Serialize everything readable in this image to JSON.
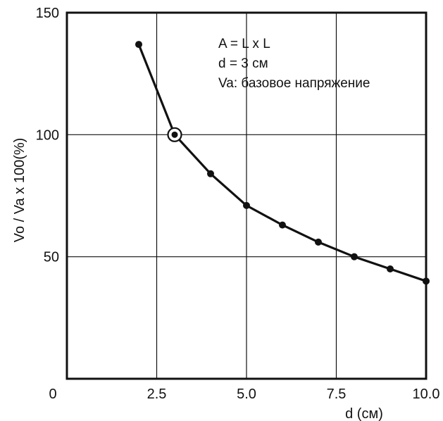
{
  "chart_data": {
    "type": "line",
    "xlabel": "d (см)",
    "ylabel": "Vo / Va x 100(%)",
    "xlim": [
      0,
      10.0
    ],
    "ylim": [
      0,
      150
    ],
    "xticks": [
      "0",
      "2.5",
      "5.0",
      "7.5",
      "10.0"
    ],
    "yticks": [
      "0",
      "50",
      "100",
      "150"
    ],
    "grid": true,
    "annotations": [
      "A = L x L",
      "d = 3 см",
      "Va: базовое напряжение"
    ],
    "series": [
      {
        "x": [
          2.0,
          3.0,
          4.0,
          5.0,
          6.0,
          7.0,
          8.0,
          9.0,
          10.0
        ],
        "values": [
          137,
          100,
          84,
          71,
          63,
          56,
          50,
          45,
          40
        ]
      }
    ],
    "highlight_point": {
      "x": 3.0,
      "y": 100
    }
  }
}
